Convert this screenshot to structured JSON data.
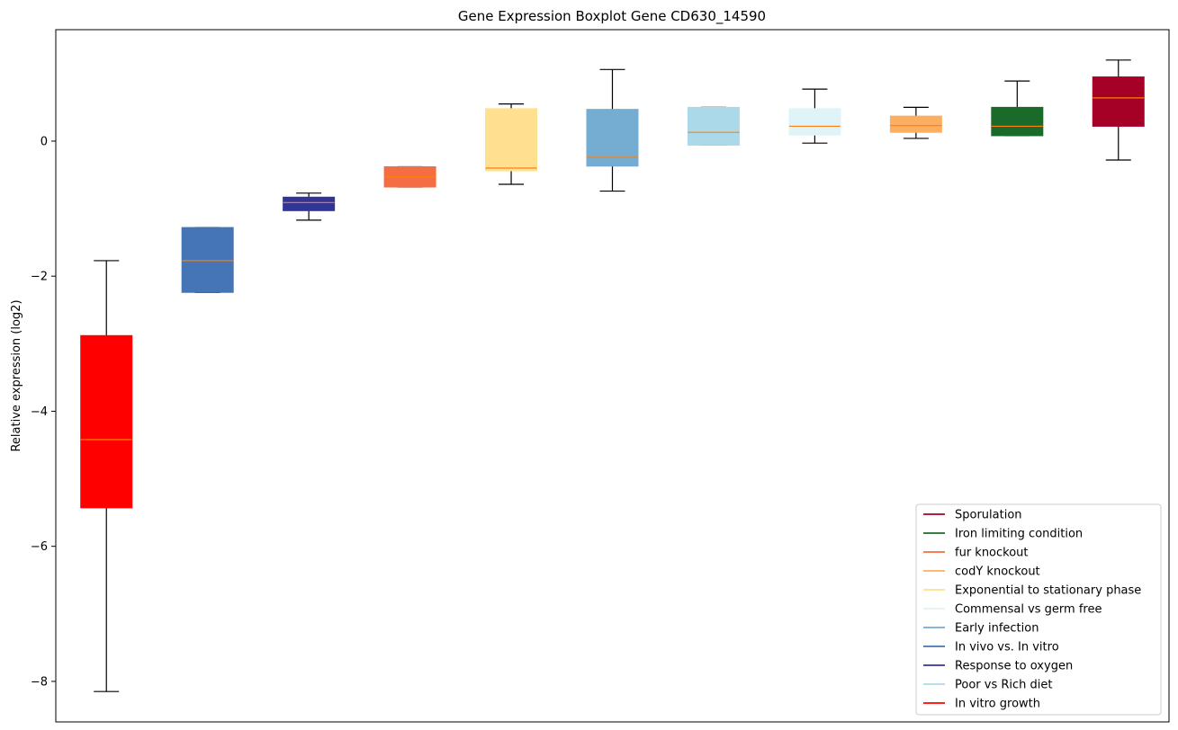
{
  "chart_data": {
    "type": "boxplot",
    "title": "Gene Expression Boxplot Gene CD630_14590",
    "xlabel": "",
    "ylabel": "Relative expression (log2)",
    "ylim": [
      -8.6,
      1.65
    ],
    "yticks": [
      0,
      -2,
      -4,
      -6,
      -8
    ],
    "grid": false,
    "legend_position": "bottom-right",
    "median_color": "#ff7f0e",
    "boxes": [
      {
        "name": "In vitro growth",
        "color": "#ff0000",
        "whisker_low": -8.15,
        "q1": -5.43,
        "median": -4.42,
        "q3": -2.88,
        "whisker_high": -1.77
      },
      {
        "name": "In vivo vs. In vitro",
        "color": "#4575b4",
        "whisker_low": -2.24,
        "q1": -2.24,
        "median": -1.77,
        "q3": -1.28,
        "whisker_high": -1.28
      },
      {
        "name": "Response to oxygen",
        "color": "#313695",
        "whisker_low": -1.17,
        "q1": -1.03,
        "median": -0.91,
        "q3": -0.83,
        "whisker_high": -0.77
      },
      {
        "name": "fur knockout",
        "color": "#f46d43",
        "whisker_low": -0.68,
        "q1": -0.68,
        "median": -0.53,
        "q3": -0.38,
        "whisker_high": -0.38
      },
      {
        "name": "Exponential to stationary phase",
        "color": "#fee090",
        "whisker_low": -0.64,
        "q1": -0.44,
        "median": -0.4,
        "q3": 0.48,
        "whisker_high": 0.55
      },
      {
        "name": "Early infection",
        "color": "#74add1",
        "whisker_low": -0.74,
        "q1": -0.37,
        "median": -0.24,
        "q3": 0.47,
        "whisker_high": 1.06
      },
      {
        "name": "Poor vs Rich diet",
        "color": "#abd9e9",
        "whisker_low": -0.06,
        "q1": -0.06,
        "median": 0.13,
        "q3": 0.5,
        "whisker_high": 0.5
      },
      {
        "name": "Commensal vs germ free",
        "color": "#e0f3f8",
        "whisker_low": -0.03,
        "q1": 0.09,
        "median": 0.22,
        "q3": 0.48,
        "whisker_high": 0.77
      },
      {
        "name": "codY knockout",
        "color": "#fdae61",
        "whisker_low": 0.04,
        "q1": 0.13,
        "median": 0.23,
        "q3": 0.37,
        "whisker_high": 0.5
      },
      {
        "name": "Iron limiting condition",
        "color": "#1a6b2a",
        "whisker_low": 0.08,
        "q1": 0.08,
        "median": 0.22,
        "q3": 0.5,
        "whisker_high": 0.89
      },
      {
        "name": "Sporulation",
        "color": "#a50026",
        "whisker_low": -0.28,
        "q1": 0.22,
        "median": 0.64,
        "q3": 0.95,
        "whisker_high": 1.2
      }
    ],
    "legend": [
      {
        "name": "Sporulation",
        "color": "#a50026"
      },
      {
        "name": "Iron limiting condition",
        "color": "#1a6b2a"
      },
      {
        "name": "fur knockout",
        "color": "#f46d43"
      },
      {
        "name": "codY knockout",
        "color": "#fdae61"
      },
      {
        "name": "Exponential to stationary phase",
        "color": "#fee090"
      },
      {
        "name": "Commensal vs germ free",
        "color": "#e0f3f8"
      },
      {
        "name": "Early infection",
        "color": "#74add1"
      },
      {
        "name": "In vivo vs. In vitro",
        "color": "#4575b4"
      },
      {
        "name": "Response to oxygen",
        "color": "#313695"
      },
      {
        "name": "Poor vs Rich diet",
        "color": "#abd9e9"
      },
      {
        "name": "In vitro growth",
        "color": "#ff0000"
      }
    ]
  }
}
